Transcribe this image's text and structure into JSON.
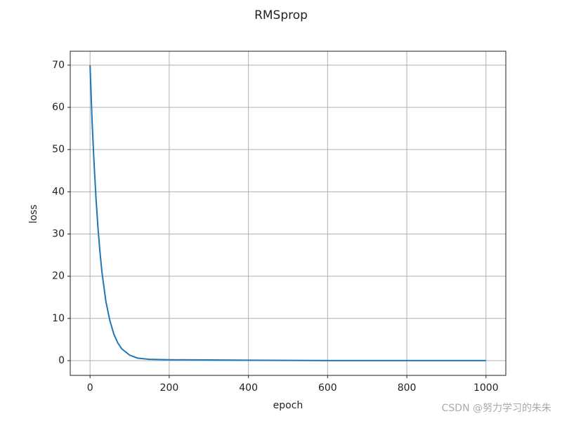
{
  "chart_data": {
    "type": "line",
    "title": "RMSprop",
    "x_label": "epoch",
    "y_label": "loss",
    "x": [
      0,
      5,
      10,
      15,
      20,
      25,
      30,
      40,
      50,
      60,
      70,
      80,
      100,
      120,
      150,
      200,
      300,
      400,
      500,
      600,
      800,
      1000
    ],
    "values": [
      70,
      57,
      47,
      38.5,
      31.5,
      25.8,
      21,
      14,
      9.5,
      6.3,
      4.2,
      2.8,
      1.3,
      0.6,
      0.3,
      0.2,
      0.15,
      0.1,
      0.05,
      0.02,
      0.01,
      0.01
    ],
    "color": "#1f77b4",
    "xlim": [
      -50,
      1050
    ],
    "xticks": [
      0,
      200,
      400,
      600,
      800,
      1000
    ],
    "ylim": [
      -3.5,
      73.3
    ],
    "yticks": [
      0,
      10,
      20,
      30,
      40,
      50,
      60,
      70
    ],
    "grid": true,
    "watermark": "CSDN @努力学习的朱朱"
  }
}
